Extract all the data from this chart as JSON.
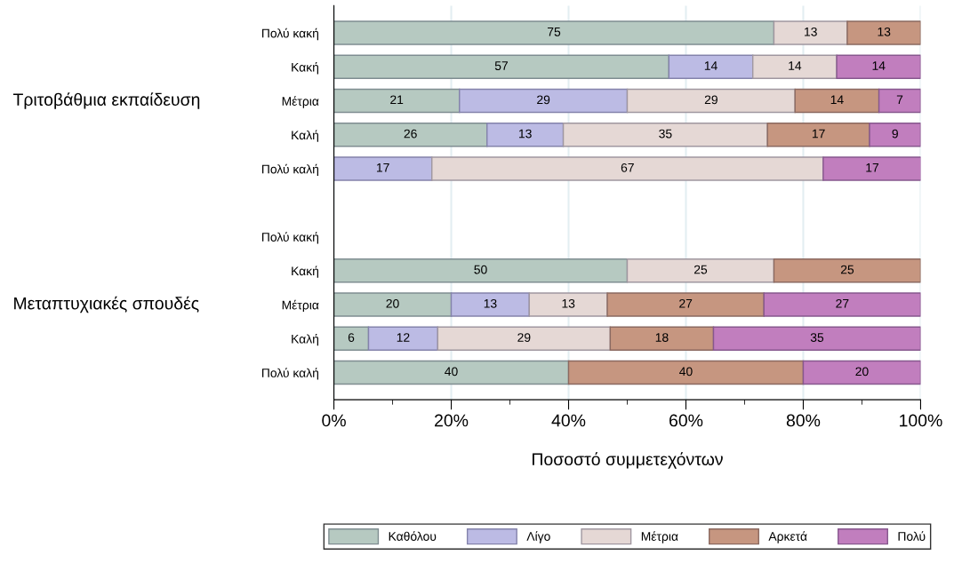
{
  "chart_data": {
    "type": "bar",
    "orientation": "horizontal",
    "stacked": true,
    "categories": [
      "Πολύ κακή",
      "Κακή",
      "Μέτρια",
      "Καλή",
      "Πολύ καλή",
      null,
      "Πολύ κακή",
      "Κακή",
      "Μέτρια",
      "Καλή",
      "Πολύ καλή"
    ],
    "series": [
      {
        "name": "Καθόλου",
        "color": "#b6c9c1",
        "values": [
          75,
          57.1,
          21.4,
          26.1,
          null,
          null,
          null,
          50,
          20,
          5.9,
          40
        ],
        "value_labels": [
          "75",
          "57",
          "21",
          "26",
          null,
          null,
          null,
          "50",
          "20",
          "6",
          "40"
        ]
      },
      {
        "name": "Λίγο",
        "color": "#bcbbe4",
        "values": [
          null,
          14.3,
          28.6,
          13,
          16.7,
          null,
          null,
          null,
          13.3,
          11.8,
          null
        ],
        "value_labels": [
          null,
          "14",
          "29",
          "13",
          "17",
          null,
          null,
          null,
          "13",
          "12",
          null
        ]
      },
      {
        "name": "Μέτρια",
        "color": "#e5d8d5",
        "values": [
          12.5,
          14.3,
          28.6,
          34.8,
          66.7,
          null,
          null,
          25,
          13.3,
          29.4,
          null
        ],
        "value_labels": [
          "13",
          "14",
          "29",
          "35",
          "67",
          null,
          null,
          "25",
          "13",
          "29",
          null
        ]
      },
      {
        "name": "Αρκετά",
        "color": "#c69680",
        "values": [
          12.5,
          null,
          14.3,
          17.4,
          null,
          null,
          null,
          25,
          26.7,
          17.6,
          40
        ],
        "value_labels": [
          "13",
          null,
          "14",
          "17",
          null,
          null,
          null,
          "25",
          "27",
          "18",
          "40"
        ]
      },
      {
        "name": "Πολύ",
        "color": "#c17ebe",
        "values": [
          null,
          14.3,
          7.1,
          8.7,
          16.7,
          null,
          null,
          null,
          26.7,
          35.3,
          20
        ],
        "value_labels": [
          null,
          "14",
          "7",
          "9",
          "17",
          null,
          null,
          null,
          "27",
          "35",
          "20"
        ]
      }
    ],
    "xlim": [
      0,
      100
    ],
    "xticks": [
      {
        "value": 0,
        "label": "0%"
      },
      {
        "value": 10,
        "label": null
      },
      {
        "value": 20,
        "label": "20%"
      },
      {
        "value": 30,
        "label": null
      },
      {
        "value": 40,
        "label": "40%"
      },
      {
        "value": 50,
        "label": null
      },
      {
        "value": 60,
        "label": "60%"
      },
      {
        "value": 70,
        "label": null
      },
      {
        "value": 80,
        "label": "80%"
      },
      {
        "value": 90,
        "label": null
      },
      {
        "value": 100,
        "label": "100%"
      }
    ],
    "xlabel": "Ποσοστό συμμετεχόντων",
    "annotations": [
      "Τριτοβάθμια εκπαίδευση",
      "Μεταπτυχιακές σπουδές"
    ],
    "grid": "x",
    "legend": "bottom"
  }
}
